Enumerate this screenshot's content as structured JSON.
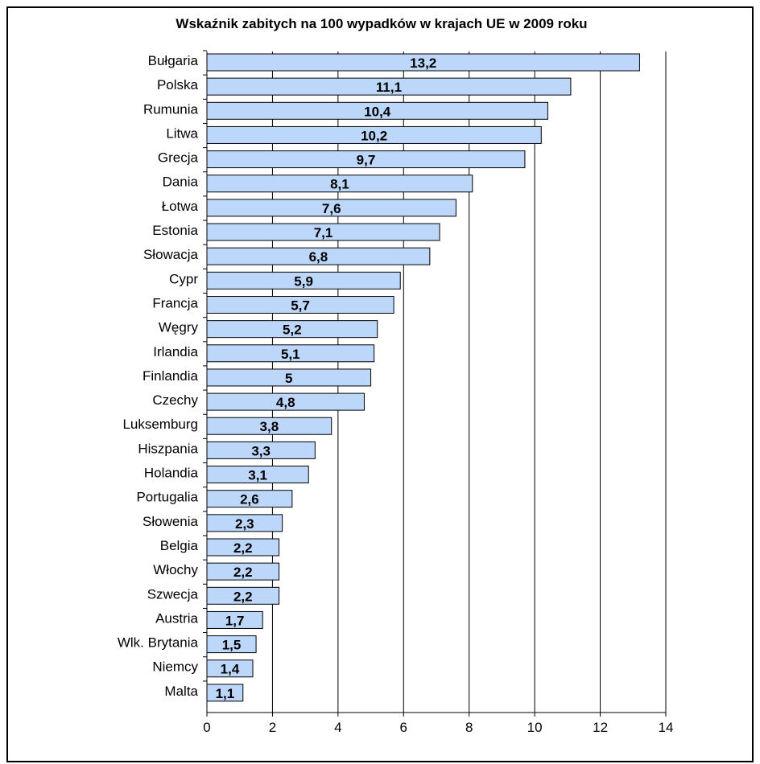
{
  "chart_data": {
    "type": "bar",
    "orientation": "horizontal",
    "title": "Wskaźnik zabitych na 100 wypadków w krajach UE w 2009 roku",
    "xlabel": "",
    "ylabel": "",
    "xlim": [
      0,
      14
    ],
    "xticks": [
      0,
      2,
      4,
      6,
      8,
      10,
      12,
      14
    ],
    "grid": true,
    "categories": [
      "Bułgaria",
      "Polska",
      "Rumunia",
      "Litwa",
      "Grecja",
      "Dania",
      "Łotwa",
      "Estonia",
      "Słowacja",
      "Cypr",
      "Francja",
      "Węgry",
      "Irlandia",
      "Finlandia",
      "Czechy",
      "Luksemburg",
      "Hiszpania",
      "Holandia",
      "Portugalia",
      "Słowenia",
      "Belgia",
      "Włochy",
      "Szwecja",
      "Austria",
      "Wlk. Brytania",
      "Niemcy",
      "Malta"
    ],
    "values": [
      13.2,
      11.1,
      10.4,
      10.2,
      9.7,
      8.1,
      7.6,
      7.1,
      6.8,
      5.9,
      5.7,
      5.2,
      5.1,
      5.0,
      4.8,
      3.8,
      3.3,
      3.1,
      2.6,
      2.3,
      2.2,
      2.2,
      2.2,
      1.7,
      1.5,
      1.4,
      1.1
    ],
    "value_labels": [
      "13,2",
      "11,1",
      "10,4",
      "10,2",
      "9,7",
      "8,1",
      "7,6",
      "7,1",
      "6,8",
      "5,9",
      "5,7",
      "5,2",
      "5,1",
      "5",
      "4,8",
      "3,8",
      "3,3",
      "3,1",
      "2,6",
      "2,3",
      "2,2",
      "2,2",
      "2,2",
      "1,7",
      "1,5",
      "1,4",
      "1,1"
    ],
    "colors": {
      "bar_fill": "#bdd7fb",
      "bar_stroke": "#000000",
      "grid": "#000000"
    }
  }
}
